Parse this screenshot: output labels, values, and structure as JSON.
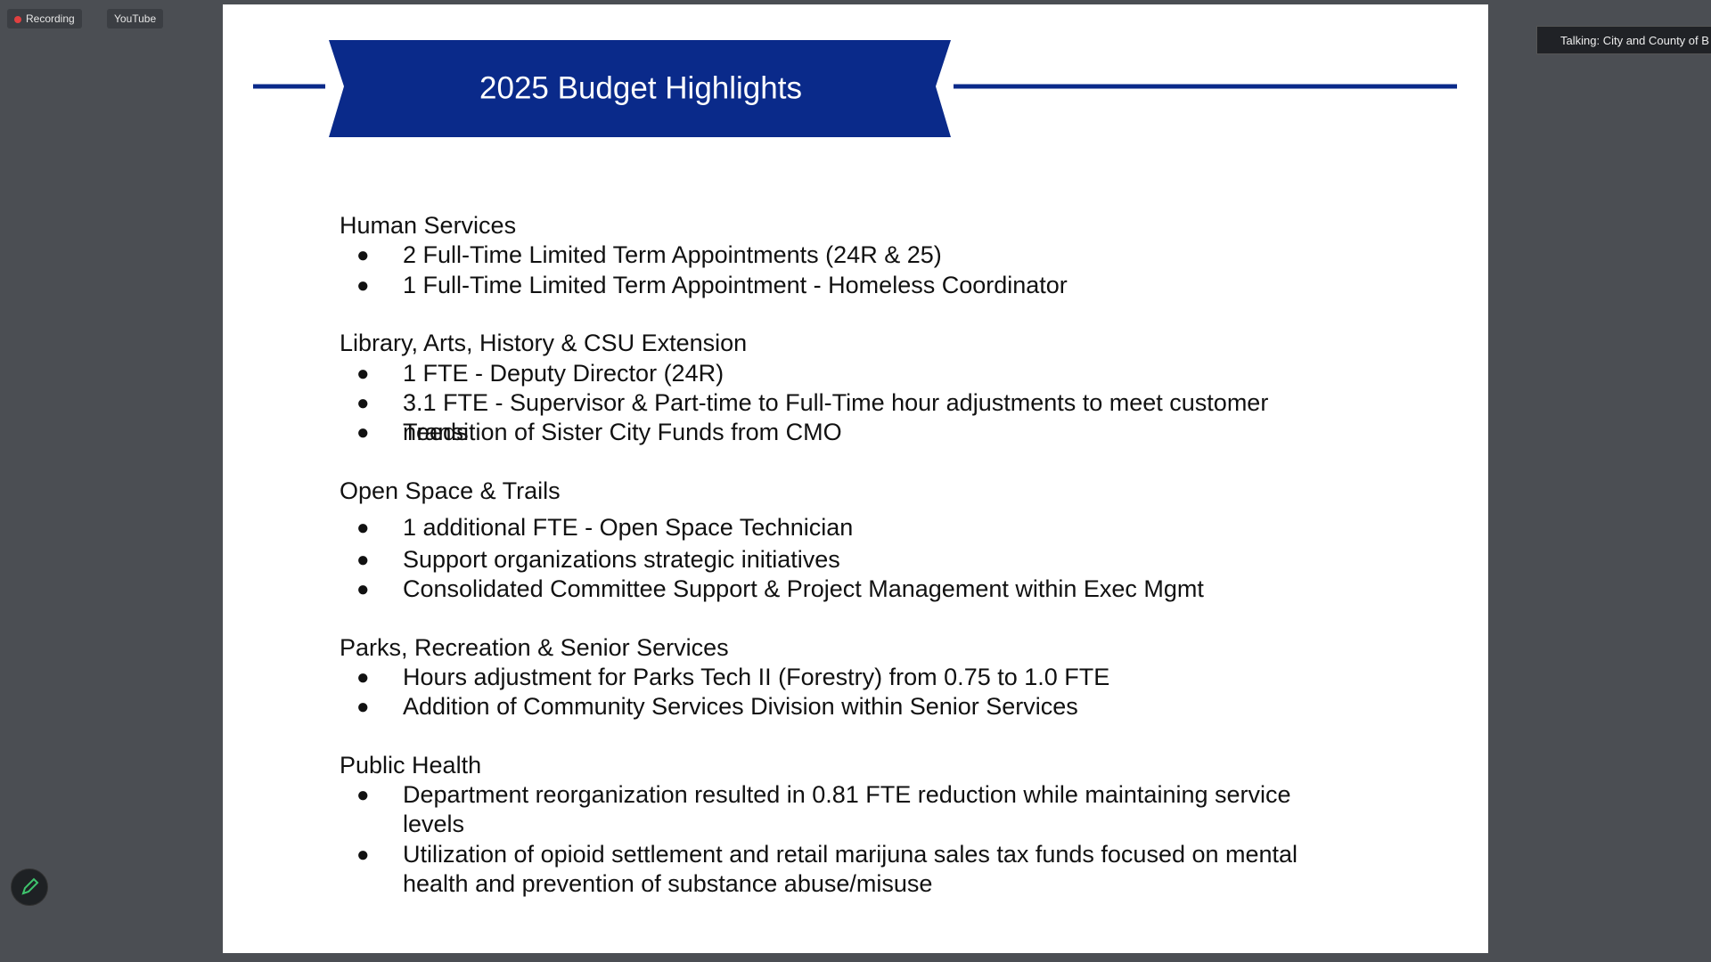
{
  "toolbar": {
    "recording": "Recording",
    "youtube": "YouTube"
  },
  "talking": "Talking: City and County of B",
  "slide": {
    "title": "2025 Budget Highlights",
    "sections": [
      {
        "heading": "Human Services",
        "items": [
          "2 Full-Time Limited Term Appointments (24R & 25)",
          "1 Full-Time Limited Term Appointment - Homeless Coordinator"
        ]
      },
      {
        "heading": "Library, Arts, History & CSU Extension",
        "items": [
          "1 FTE - Deputy Director (24R)",
          "3.1 FTE - Supervisor & Part-time to Full-Time hour adjustments to meet customer needs",
          "Transition of Sister City Funds from CMO"
        ]
      },
      {
        "heading": "Open Space & Trails",
        "items": [
          "1 additional FTE - Open Space Technician",
          "Support organizations strategic initiatives",
          "Consolidated Committee Support & Project Management within Exec Mgmt"
        ]
      },
      {
        "heading": "Parks, Recreation & Senior Services",
        "items": [
          "Hours adjustment for Parks Tech II (Forestry) from 0.75 to 1.0 FTE",
          "Addition of Community Services Division within Senior Services"
        ]
      },
      {
        "heading": "Public Health",
        "items": [
          "Department reorganization resulted in 0.81 FTE reduction while maintaining service levels",
          "Utilization of opioid settlement and retail marijuna sales tax funds focused on mental health and prevention of substance abuse/misuse"
        ]
      }
    ]
  }
}
